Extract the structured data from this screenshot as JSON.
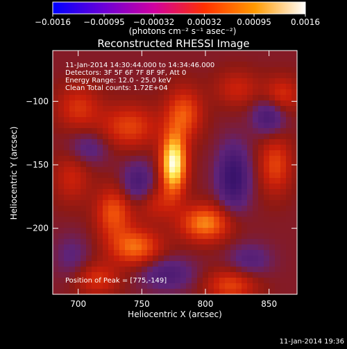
{
  "chart_data": {
    "type": "heatmap",
    "title": "Reconstructed RHESSI Image",
    "xlabel": "Heliocentric X (arcsec)",
    "ylabel": "Heliocentric Y (arcsec)",
    "xlim": [
      680,
      872
    ],
    "ylim": [
      -252,
      -60
    ],
    "x_ticks": [
      700,
      750,
      800,
      850
    ],
    "y_ticks": [
      -100,
      -150,
      -200
    ],
    "colorbar": {
      "range": [
        -0.0016,
        0.0016
      ],
      "tick_values": [
        -0.0016,
        -0.00095,
        -0.00032,
        0.00032,
        0.00095,
        0.0016
      ],
      "tick_labels": [
        "−0.0016",
        "−0.00095",
        "−0.00032",
        "0.00032",
        "0.00095",
        "0.0016"
      ],
      "unit_label": "(photons cm⁻² s⁻¹ asec⁻²)",
      "colors": [
        "#0000ff",
        "#6a00d8",
        "#d000a0",
        "#ff3000",
        "#ff9a00",
        "#ffffff"
      ]
    },
    "annotations": [
      "11-Jan-2014 14:30:44.000 to 14:34:46.000",
      "Detectors: 3F 5F 6F 7F 8F 9F, Att 0",
      "Energy Range: 12.0 - 25.0 keV",
      "Clean     Total counts: 1.72E+04"
    ],
    "peak_annotation": "Position of Peak = [775,-149]",
    "peak_position": [
      775,
      -149
    ],
    "peak_value": 0.0016,
    "background_value": 0.0001,
    "blobs": [
      {
        "x": 775,
        "y": -149,
        "value": 0.0015,
        "sx": 7,
        "sy": 16
      },
      {
        "x": 783,
        "y": -110,
        "value": 0.0007,
        "sx": 10,
        "sy": 14
      },
      {
        "x": 800,
        "y": -196,
        "value": 0.0009,
        "sx": 14,
        "sy": 10
      },
      {
        "x": 745,
        "y": -215,
        "value": 0.0008,
        "sx": 14,
        "sy": 10
      },
      {
        "x": 728,
        "y": -188,
        "value": 0.0007,
        "sx": 10,
        "sy": 14
      },
      {
        "x": 855,
        "y": -150,
        "value": 0.0006,
        "sx": 9,
        "sy": 16
      },
      {
        "x": 820,
        "y": -245,
        "value": 0.0006,
        "sx": 14,
        "sy": 9
      },
      {
        "x": 740,
        "y": -120,
        "value": 0.0006,
        "sx": 16,
        "sy": 12
      },
      {
        "x": 700,
        "y": -105,
        "value": 0.0005,
        "sx": 12,
        "sy": 12
      },
      {
        "x": 860,
        "y": -95,
        "value": 0.0005,
        "sx": 10,
        "sy": 10
      },
      {
        "x": 715,
        "y": -240,
        "value": 0.0005,
        "sx": 12,
        "sy": 9
      },
      {
        "x": 695,
        "y": -160,
        "value": 0.0004,
        "sx": 10,
        "sy": 14
      },
      {
        "x": 760,
        "y": -180,
        "value": 0.0004,
        "sx": 12,
        "sy": 10
      },
      {
        "x": 825,
        "y": -90,
        "value": 0.0004,
        "sx": 12,
        "sy": 10
      },
      {
        "x": 822,
        "y": -160,
        "value": -0.0008,
        "sx": 9,
        "sy": 18
      },
      {
        "x": 747,
        "y": -165,
        "value": -0.0006,
        "sx": 9,
        "sy": 12
      },
      {
        "x": 708,
        "y": -137,
        "value": -0.0004,
        "sx": 11,
        "sy": 9
      },
      {
        "x": 770,
        "y": -236,
        "value": -0.0005,
        "sx": 15,
        "sy": 9
      },
      {
        "x": 850,
        "y": -112,
        "value": -0.0006,
        "sx": 9,
        "sy": 10
      },
      {
        "x": 835,
        "y": -225,
        "value": -0.0004,
        "sx": 12,
        "sy": 9
      },
      {
        "x": 695,
        "y": -222,
        "value": -0.0003,
        "sx": 10,
        "sy": 12
      }
    ]
  },
  "footer": {
    "timestamp": "11-Jan-2014 19:36"
  }
}
